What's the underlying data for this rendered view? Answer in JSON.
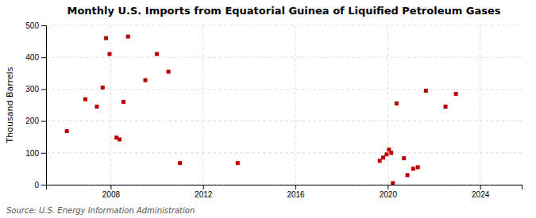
{
  "chart_data": {
    "type": "scatter",
    "title": "Monthly U.S. Imports from Equatorial Guinea of Liquified Petroleum Gases",
    "ylabel": "Thousand Barrels",
    "annotations": [
      "Source: U.S. Energy Information Administration"
    ],
    "color": "#bb0000",
    "marker": "square",
    "grid": true,
    "xlim": [
      2005.2,
      2025.8
    ],
    "ylim": [
      0,
      500
    ],
    "xticks": [
      2008,
      2012,
      2016,
      2020,
      2024
    ],
    "yticks": [
      0,
      100,
      200,
      300,
      400,
      500
    ],
    "x": [
      2006.1,
      2006.9,
      2007.4,
      2007.65,
      2007.8,
      2007.95,
      2008.25,
      2008.38,
      2008.55,
      2008.75,
      2009.5,
      2010.0,
      2010.5,
      2011.0,
      2013.5,
      2019.65,
      2019.8,
      2019.95,
      2020.05,
      2020.15,
      2020.22,
      2020.38,
      2020.7,
      2020.85,
      2021.1,
      2021.3,
      2021.65,
      2022.5,
      2022.95
    ],
    "values": [
      168,
      268,
      245,
      305,
      460,
      410,
      148,
      142,
      260,
      465,
      328,
      410,
      355,
      68,
      68,
      75,
      85,
      95,
      110,
      100,
      5,
      255,
      83,
      30,
      50,
      55,
      295,
      245,
      285
    ]
  }
}
